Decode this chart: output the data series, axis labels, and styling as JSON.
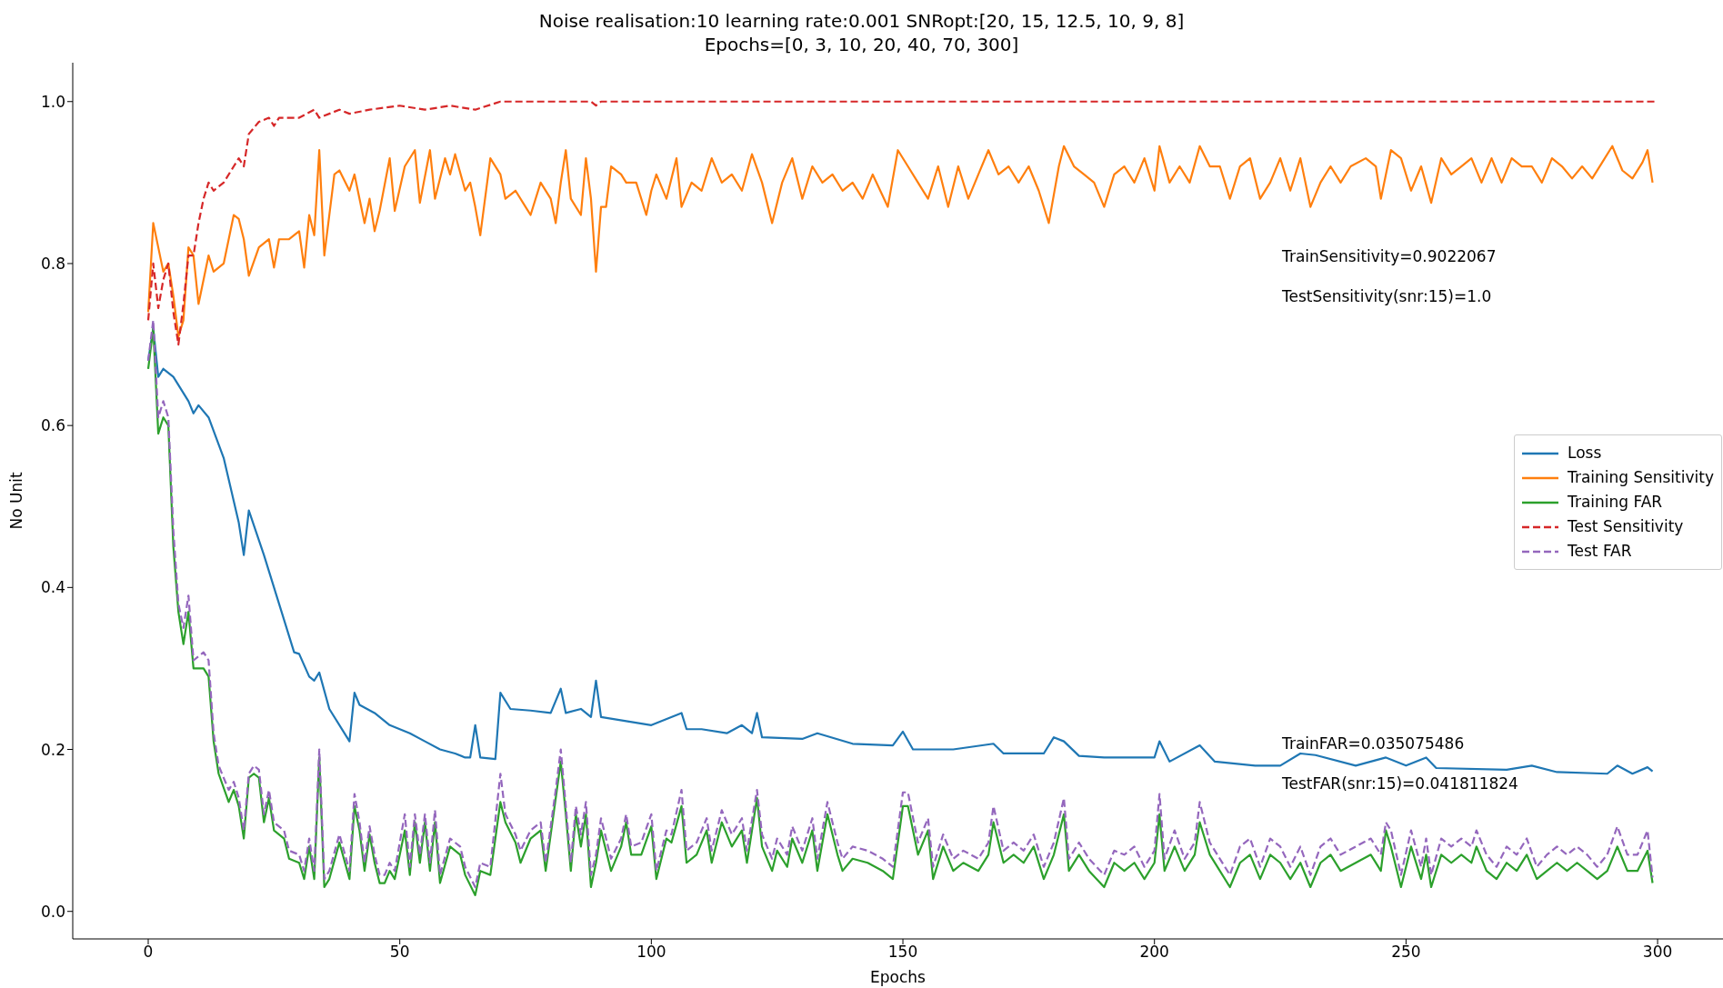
{
  "chart_data": {
    "type": "line",
    "title": "Noise realisation:10  learning rate:0.001  SNRopt:[20, 15, 12.5, 10, 9, 8]",
    "subtitle": "Epochs=[0, 3, 10, 20, 40, 70, 300]",
    "xlabel": "Epochs",
    "ylabel": "No Unit",
    "xlim": [
      -15,
      313
    ],
    "xticks": [
      0,
      50,
      100,
      150,
      200,
      250,
      300
    ],
    "ylim": [
      -0.034,
      1.048
    ],
    "yticks": [
      {
        "value": 0,
        "label": "0.0"
      },
      {
        "value": 0.2,
        "label": "0.2"
      },
      {
        "value": 0.4,
        "label": "0.4"
      },
      {
        "value": 0.6,
        "label": "0.6"
      },
      {
        "value": 0.8,
        "label": "0.8"
      },
      {
        "value": 1,
        "label": "1.0"
      }
    ],
    "grid": false,
    "legend": "right",
    "marker": "none",
    "annotations": [
      "TrainSensitivity=0.9022067",
      "TestSensitivity(snr:15)=1.0",
      "TrainFAR=0.035075486",
      "TestFAR(snr:15)=0.041811824"
    ],
    "series": [
      {
        "name": "Loss",
        "color": "#1f77b4",
        "line_style": "solid",
        "x": [
          0,
          1,
          2,
          3,
          5,
          8,
          9,
          10,
          12,
          15,
          18,
          19,
          20,
          23,
          26,
          29,
          30,
          32,
          33,
          34,
          36,
          39,
          40,
          41,
          42,
          45,
          48,
          52,
          55,
          58,
          61,
          63,
          64,
          65,
          66,
          69,
          70,
          72,
          76,
          80,
          82,
          83,
          86,
          87,
          88,
          89,
          90,
          95,
          100,
          106,
          107,
          110,
          115,
          118,
          120,
          121,
          122,
          130,
          133,
          140,
          148,
          150,
          152,
          160,
          168,
          170,
          178,
          180,
          182,
          185,
          190,
          200,
          201,
          203,
          209,
          212,
          220,
          225,
          229,
          232,
          240,
          246,
          250,
          254,
          256,
          270,
          275,
          280,
          290,
          292,
          295,
          298,
          299
        ],
        "values": [
          0.68,
          0.72,
          0.66,
          0.67,
          0.66,
          0.63,
          0.615,
          0.625,
          0.61,
          0.56,
          0.48,
          0.44,
          0.495,
          0.44,
          0.38,
          0.32,
          0.318,
          0.29,
          0.285,
          0.295,
          0.25,
          0.22,
          0.21,
          0.27,
          0.255,
          0.245,
          0.23,
          0.22,
          0.21,
          0.2,
          0.195,
          0.19,
          0.19,
          0.23,
          0.19,
          0.188,
          0.27,
          0.25,
          0.248,
          0.245,
          0.275,
          0.245,
          0.25,
          0.245,
          0.24,
          0.285,
          0.24,
          0.235,
          0.23,
          0.245,
          0.225,
          0.225,
          0.22,
          0.23,
          0.22,
          0.245,
          0.215,
          0.213,
          0.22,
          0.207,
          0.205,
          0.222,
          0.2,
          0.2,
          0.207,
          0.195,
          0.195,
          0.215,
          0.21,
          0.192,
          0.19,
          0.19,
          0.21,
          0.185,
          0.205,
          0.185,
          0.18,
          0.18,
          0.195,
          0.193,
          0.18,
          0.19,
          0.18,
          0.19,
          0.177,
          0.175,
          0.18,
          0.172,
          0.17,
          0.18,
          0.17,
          0.178,
          0.173
        ]
      },
      {
        "name": "Training Sensitivity",
        "color": "#ff7f0e",
        "line_style": "solid",
        "x": [
          0,
          1,
          2,
          3,
          4,
          5,
          6,
          7,
          8,
          9,
          10,
          12,
          13,
          15,
          17,
          18,
          19,
          20,
          22,
          24,
          25,
          26,
          28,
          30,
          31,
          32,
          33,
          34,
          35,
          37,
          38,
          40,
          41,
          43,
          44,
          45,
          46,
          48,
          49,
          51,
          53,
          54,
          56,
          57,
          59,
          60,
          61,
          63,
          64,
          65,
          66,
          68,
          70,
          71,
          73,
          75,
          76,
          78,
          80,
          81,
          82,
          83,
          84,
          86,
          87,
          88,
          89,
          90,
          91,
          92,
          94,
          95,
          97,
          99,
          100,
          101,
          103,
          105,
          106,
          108,
          110,
          112,
          114,
          116,
          118,
          120,
          122,
          124,
          126,
          128,
          130,
          132,
          134,
          136,
          138,
          140,
          142,
          144,
          147,
          149,
          151,
          153,
          155,
          157,
          159,
          161,
          163,
          165,
          167,
          169,
          171,
          173,
          175,
          177,
          179,
          181,
          182,
          184,
          186,
          188,
          190,
          192,
          194,
          196,
          198,
          200,
          201,
          203,
          205,
          207,
          209,
          211,
          213,
          215,
          217,
          219,
          221,
          223,
          225,
          227,
          229,
          231,
          233,
          235,
          237,
          239,
          242,
          244,
          245,
          247,
          249,
          251,
          253,
          255,
          257,
          259,
          261,
          263,
          265,
          267,
          269,
          271,
          273,
          275,
          277,
          279,
          281,
          283,
          285,
          287,
          289,
          291,
          293,
          295,
          297,
          298,
          299
        ],
        "values": [
          0.74,
          0.85,
          0.82,
          0.79,
          0.8,
          0.76,
          0.71,
          0.73,
          0.82,
          0.81,
          0.75,
          0.81,
          0.79,
          0.8,
          0.86,
          0.855,
          0.83,
          0.785,
          0.82,
          0.83,
          0.795,
          0.83,
          0.83,
          0.84,
          0.795,
          0.86,
          0.835,
          0.94,
          0.81,
          0.91,
          0.915,
          0.89,
          0.91,
          0.85,
          0.88,
          0.84,
          0.865,
          0.93,
          0.865,
          0.92,
          0.94,
          0.875,
          0.94,
          0.88,
          0.93,
          0.91,
          0.935,
          0.89,
          0.9,
          0.87,
          0.835,
          0.93,
          0.91,
          0.88,
          0.89,
          0.87,
          0.86,
          0.9,
          0.88,
          0.85,
          0.9,
          0.94,
          0.88,
          0.86,
          0.93,
          0.88,
          0.79,
          0.87,
          0.87,
          0.92,
          0.91,
          0.9,
          0.9,
          0.86,
          0.89,
          0.91,
          0.88,
          0.93,
          0.87,
          0.9,
          0.89,
          0.93,
          0.9,
          0.91,
          0.89,
          0.935,
          0.9,
          0.85,
          0.9,
          0.93,
          0.88,
          0.92,
          0.9,
          0.91,
          0.89,
          0.9,
          0.88,
          0.91,
          0.87,
          0.94,
          0.92,
          0.9,
          0.88,
          0.92,
          0.87,
          0.92,
          0.88,
          0.91,
          0.94,
          0.91,
          0.92,
          0.9,
          0.92,
          0.89,
          0.85,
          0.92,
          0.945,
          0.92,
          0.91,
          0.9,
          0.87,
          0.91,
          0.92,
          0.9,
          0.93,
          0.89,
          0.945,
          0.9,
          0.92,
          0.9,
          0.945,
          0.92,
          0.92,
          0.88,
          0.92,
          0.93,
          0.88,
          0.9,
          0.93,
          0.89,
          0.93,
          0.87,
          0.9,
          0.92,
          0.9,
          0.92,
          0.93,
          0.92,
          0.88,
          0.94,
          0.93,
          0.89,
          0.92,
          0.875,
          0.93,
          0.91,
          0.92,
          0.93,
          0.9,
          0.93,
          0.9,
          0.93,
          0.92,
          0.92,
          0.9,
          0.93,
          0.92,
          0.905,
          0.92,
          0.905,
          0.925,
          0.945,
          0.915,
          0.905,
          0.925,
          0.94,
          0.9
        ]
      },
      {
        "name": "Training FAR",
        "color": "#2ca02c",
        "line_style": "solid",
        "x": [
          0,
          1,
          2,
          3,
          4,
          5,
          6,
          7,
          8,
          9,
          11,
          12,
          13,
          14,
          16,
          17,
          18,
          19,
          20,
          21,
          22,
          23,
          24,
          25,
          27,
          28,
          30,
          31,
          32,
          33,
          34,
          35,
          36,
          38,
          40,
          41,
          42,
          43,
          44,
          45,
          46,
          47,
          48,
          49,
          51,
          52,
          53,
          54,
          55,
          56,
          57,
          58,
          60,
          62,
          63,
          65,
          66,
          68,
          70,
          71,
          73,
          74,
          76,
          78,
          79,
          81,
          82,
          83,
          84,
          85,
          86,
          87,
          88,
          89,
          90,
          92,
          94,
          95,
          96,
          98,
          100,
          101,
          103,
          104,
          106,
          107,
          109,
          111,
          112,
          114,
          116,
          118,
          119,
          121,
          122,
          124,
          125,
          127,
          128,
          130,
          132,
          133,
          135,
          137,
          138,
          140,
          143,
          146,
          148,
          150,
          151,
          153,
          155,
          156,
          158,
          160,
          162,
          165,
          167,
          168,
          170,
          172,
          174,
          176,
          178,
          180,
          182,
          183,
          185,
          187,
          190,
          192,
          194,
          196,
          198,
          200,
          201,
          202,
          204,
          206,
          208,
          209,
          211,
          213,
          215,
          217,
          219,
          221,
          223,
          225,
          227,
          229,
          231,
          233,
          235,
          237,
          240,
          243,
          245,
          246,
          247,
          249,
          251,
          253,
          254,
          255,
          257,
          259,
          261,
          263,
          264,
          266,
          268,
          270,
          272,
          274,
          276,
          278,
          280,
          282,
          284,
          286,
          288,
          290,
          292,
          294,
          296,
          298,
          299
        ],
        "values": [
          0.67,
          0.72,
          0.59,
          0.61,
          0.6,
          0.45,
          0.37,
          0.33,
          0.37,
          0.3,
          0.3,
          0.29,
          0.21,
          0.17,
          0.135,
          0.15,
          0.13,
          0.09,
          0.165,
          0.17,
          0.165,
          0.11,
          0.14,
          0.1,
          0.09,
          0.065,
          0.06,
          0.04,
          0.08,
          0.04,
          0.19,
          0.03,
          0.04,
          0.085,
          0.04,
          0.13,
          0.1,
          0.05,
          0.095,
          0.06,
          0.035,
          0.035,
          0.05,
          0.04,
          0.1,
          0.045,
          0.11,
          0.06,
          0.11,
          0.05,
          0.11,
          0.035,
          0.08,
          0.07,
          0.045,
          0.02,
          0.05,
          0.045,
          0.135,
          0.11,
          0.085,
          0.06,
          0.09,
          0.1,
          0.05,
          0.14,
          0.185,
          0.12,
          0.05,
          0.12,
          0.08,
          0.12,
          0.03,
          0.06,
          0.1,
          0.05,
          0.08,
          0.11,
          0.07,
          0.07,
          0.105,
          0.04,
          0.09,
          0.085,
          0.13,
          0.06,
          0.07,
          0.1,
          0.06,
          0.11,
          0.08,
          0.1,
          0.06,
          0.14,
          0.08,
          0.05,
          0.075,
          0.055,
          0.09,
          0.06,
          0.1,
          0.05,
          0.12,
          0.07,
          0.05,
          0.065,
          0.06,
          0.05,
          0.04,
          0.13,
          0.13,
          0.07,
          0.1,
          0.04,
          0.08,
          0.05,
          0.06,
          0.05,
          0.07,
          0.11,
          0.06,
          0.07,
          0.06,
          0.08,
          0.04,
          0.07,
          0.12,
          0.05,
          0.07,
          0.05,
          0.03,
          0.06,
          0.05,
          0.06,
          0.04,
          0.06,
          0.12,
          0.05,
          0.08,
          0.05,
          0.07,
          0.11,
          0.07,
          0.05,
          0.03,
          0.06,
          0.07,
          0.04,
          0.07,
          0.06,
          0.04,
          0.06,
          0.03,
          0.06,
          0.07,
          0.05,
          0.06,
          0.07,
          0.05,
          0.1,
          0.08,
          0.03,
          0.08,
          0.04,
          0.07,
          0.03,
          0.07,
          0.06,
          0.07,
          0.06,
          0.08,
          0.05,
          0.04,
          0.06,
          0.05,
          0.07,
          0.04,
          0.05,
          0.06,
          0.05,
          0.06,
          0.05,
          0.04,
          0.05,
          0.08,
          0.05,
          0.05,
          0.075,
          0.035
        ]
      },
      {
        "name": "Test Sensitivity",
        "color": "#d62728",
        "line_style": "dashed",
        "x": [
          0,
          1,
          2,
          3,
          4,
          5,
          6,
          7,
          8,
          9,
          10,
          11,
          12,
          13,
          15,
          17,
          18,
          19,
          20,
          22,
          24,
          25,
          26,
          30,
          33,
          34,
          38,
          40,
          44,
          50,
          55,
          60,
          65,
          70,
          88,
          89,
          90,
          300
        ],
        "values": [
          0.73,
          0.8,
          0.745,
          0.78,
          0.8,
          0.74,
          0.7,
          0.75,
          0.81,
          0.81,
          0.85,
          0.88,
          0.9,
          0.89,
          0.9,
          0.92,
          0.93,
          0.92,
          0.96,
          0.975,
          0.98,
          0.97,
          0.98,
          0.98,
          0.99,
          0.98,
          0.99,
          0.985,
          0.99,
          0.995,
          0.99,
          0.995,
          0.99,
          1.0,
          1.0,
          0.995,
          1.0,
          1.0
        ]
      },
      {
        "name": "Test FAR",
        "color": "#9467bd",
        "line_style": "dashed",
        "x": [
          0,
          1,
          2,
          3,
          4,
          5,
          6,
          7,
          8,
          9,
          11,
          12,
          13,
          14,
          16,
          17,
          18,
          19,
          20,
          21,
          22,
          23,
          24,
          25,
          27,
          28,
          30,
          31,
          32,
          33,
          34,
          35,
          36,
          38,
          40,
          41,
          42,
          43,
          44,
          45,
          46,
          47,
          48,
          49,
          51,
          52,
          53,
          54,
          55,
          56,
          57,
          58,
          60,
          62,
          63,
          65,
          66,
          68,
          70,
          71,
          73,
          74,
          76,
          78,
          79,
          81,
          82,
          83,
          84,
          85,
          86,
          87,
          88,
          89,
          90,
          92,
          94,
          95,
          96,
          98,
          100,
          101,
          103,
          104,
          106,
          107,
          109,
          111,
          112,
          114,
          116,
          118,
          119,
          121,
          122,
          124,
          125,
          127,
          128,
          130,
          132,
          133,
          135,
          137,
          138,
          140,
          143,
          146,
          148,
          150,
          151,
          153,
          155,
          156,
          158,
          160,
          162,
          165,
          167,
          168,
          170,
          172,
          174,
          176,
          178,
          180,
          182,
          183,
          185,
          187,
          190,
          192,
          194,
          196,
          198,
          200,
          201,
          202,
          204,
          206,
          208,
          209,
          211,
          213,
          215,
          217,
          219,
          221,
          223,
          225,
          227,
          229,
          231,
          233,
          235,
          237,
          240,
          243,
          245,
          246,
          247,
          249,
          251,
          253,
          254,
          255,
          257,
          259,
          261,
          263,
          264,
          266,
          268,
          270,
          272,
          274,
          276,
          278,
          280,
          282,
          284,
          286,
          288,
          290,
          292,
          294,
          296,
          298,
          299
        ],
        "values": [
          0.68,
          0.73,
          0.61,
          0.63,
          0.61,
          0.47,
          0.38,
          0.35,
          0.39,
          0.31,
          0.32,
          0.31,
          0.22,
          0.18,
          0.15,
          0.16,
          0.14,
          0.1,
          0.17,
          0.18,
          0.175,
          0.12,
          0.15,
          0.11,
          0.1,
          0.075,
          0.07,
          0.05,
          0.09,
          0.05,
          0.2,
          0.04,
          0.05,
          0.095,
          0.05,
          0.145,
          0.11,
          0.06,
          0.105,
          0.07,
          0.045,
          0.045,
          0.06,
          0.05,
          0.12,
          0.055,
          0.12,
          0.07,
          0.12,
          0.06,
          0.125,
          0.045,
          0.09,
          0.08,
          0.055,
          0.03,
          0.06,
          0.055,
          0.17,
          0.12,
          0.095,
          0.075,
          0.1,
          0.11,
          0.06,
          0.15,
          0.2,
          0.13,
          0.06,
          0.13,
          0.095,
          0.135,
          0.045,
          0.07,
          0.115,
          0.065,
          0.09,
          0.12,
          0.08,
          0.085,
          0.12,
          0.05,
          0.1,
          0.095,
          0.15,
          0.075,
          0.085,
          0.115,
          0.075,
          0.125,
          0.095,
          0.115,
          0.075,
          0.15,
          0.095,
          0.065,
          0.09,
          0.07,
          0.105,
          0.075,
          0.115,
          0.065,
          0.135,
          0.085,
          0.065,
          0.08,
          0.075,
          0.065,
          0.055,
          0.147,
          0.147,
          0.085,
          0.115,
          0.055,
          0.095,
          0.065,
          0.075,
          0.065,
          0.085,
          0.13,
          0.075,
          0.085,
          0.075,
          0.095,
          0.055,
          0.085,
          0.14,
          0.065,
          0.085,
          0.065,
          0.045,
          0.075,
          0.07,
          0.08,
          0.055,
          0.075,
          0.145,
          0.065,
          0.1,
          0.065,
          0.085,
          0.135,
          0.085,
          0.065,
          0.045,
          0.08,
          0.09,
          0.055,
          0.09,
          0.08,
          0.055,
          0.08,
          0.045,
          0.08,
          0.09,
          0.07,
          0.08,
          0.09,
          0.07,
          0.11,
          0.1,
          0.045,
          0.1,
          0.055,
          0.09,
          0.045,
          0.09,
          0.08,
          0.09,
          0.08,
          0.1,
          0.07,
          0.055,
          0.08,
          0.07,
          0.09,
          0.055,
          0.07,
          0.08,
          0.07,
          0.08,
          0.07,
          0.055,
          0.07,
          0.105,
          0.07,
          0.07,
          0.1,
          0.042
        ]
      }
    ]
  }
}
